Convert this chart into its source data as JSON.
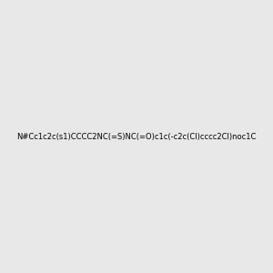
{
  "smiles": "N#Cc1c2c(s1)CCCC2NC(=S)NC(=O)c1c(-c2c(Cl)cccc2Cl)noc1C",
  "title": "",
  "bg_color": "#e8e8e8",
  "img_size": [
    300,
    300
  ]
}
